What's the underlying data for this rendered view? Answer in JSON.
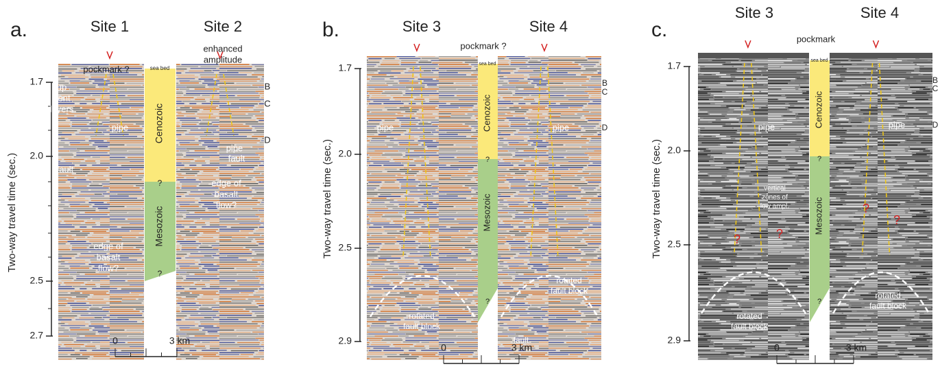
{
  "panels": [
    {
      "label": "a.",
      "sites": [
        "Site 1",
        "Site 2"
      ],
      "axis_title": "Two-way travel time (sec.)",
      "ticks": [
        "1.7",
        "2.0",
        "2.5",
        "2.7"
      ],
      "scale": [
        "0",
        "3 km"
      ],
      "annotations": [
        {
          "text": "pockmark ?"
        },
        {
          "lines": [
            "enhanced",
            "amplitude"
          ]
        },
        {
          "text": "sea bed"
        },
        {
          "text": "Cenozoic"
        },
        {
          "text": "Mesozoic"
        },
        {
          "text": "?"
        },
        {
          "text": "?"
        },
        {
          "text": "B"
        },
        {
          "text": "C"
        },
        {
          "text": "D"
        },
        {
          "lines": [
            "up",
            "bent",
            "layers"
          ]
        },
        {
          "text": "pipe"
        },
        {
          "text": "pipe"
        },
        {
          "text": "fault"
        },
        {
          "text": "fault"
        },
        {
          "lines": [
            "edge of",
            "basalt",
            "flow?"
          ]
        },
        {
          "lines": [
            "edge of",
            "basalt",
            "flow?"
          ]
        }
      ]
    },
    {
      "label": "b.",
      "sites": [
        "Site 3",
        "Site 4"
      ],
      "axis_title": "Two-way travel time (sec.)",
      "ticks": [
        "1.7",
        "2.0",
        "2.5",
        "2.9"
      ],
      "scale": [
        "0",
        "3 km"
      ],
      "annotations": [
        {
          "text": "pockmark ?"
        },
        {
          "text": "sea bed"
        },
        {
          "text": "Cenozoic"
        },
        {
          "text": "Mesozoic"
        },
        {
          "text": "?"
        },
        {
          "text": "?"
        },
        {
          "text": "pipe"
        },
        {
          "text": "pipe"
        },
        {
          "text": "B"
        },
        {
          "text": "C"
        },
        {
          "text": "D"
        },
        {
          "lines": [
            "rotated",
            "fault block"
          ]
        },
        {
          "lines": [
            "rotated",
            "fault block"
          ]
        },
        {
          "text": "fault"
        }
      ]
    },
    {
      "label": "c.",
      "sites": [
        "Site 3",
        "Site 4"
      ],
      "axis_title": "Two-way travel time (sec.)",
      "ticks": [
        "1.7",
        "2.0",
        "2.5",
        "2.9"
      ],
      "scale": [
        "0",
        "3 km"
      ],
      "annotations": [
        {
          "text": "pockmark"
        },
        {
          "text": "sea bed"
        },
        {
          "text": "Cenozoic"
        },
        {
          "text": "Mesozoic"
        },
        {
          "text": "?"
        },
        {
          "text": "?"
        },
        {
          "text": "pipe"
        },
        {
          "text": "pipe"
        },
        {
          "text": "B"
        },
        {
          "text": "C"
        },
        {
          "text": "D"
        },
        {
          "lines": [
            "vertical",
            "zones of",
            "low ampl."
          ]
        },
        {
          "text": "?"
        },
        {
          "text": "?"
        },
        {
          "text": "?"
        },
        {
          "text": "?"
        },
        {
          "lines": [
            "rotated",
            "fault block"
          ]
        },
        {
          "lines": [
            "rotated",
            "fault block"
          ]
        }
      ]
    }
  ]
}
